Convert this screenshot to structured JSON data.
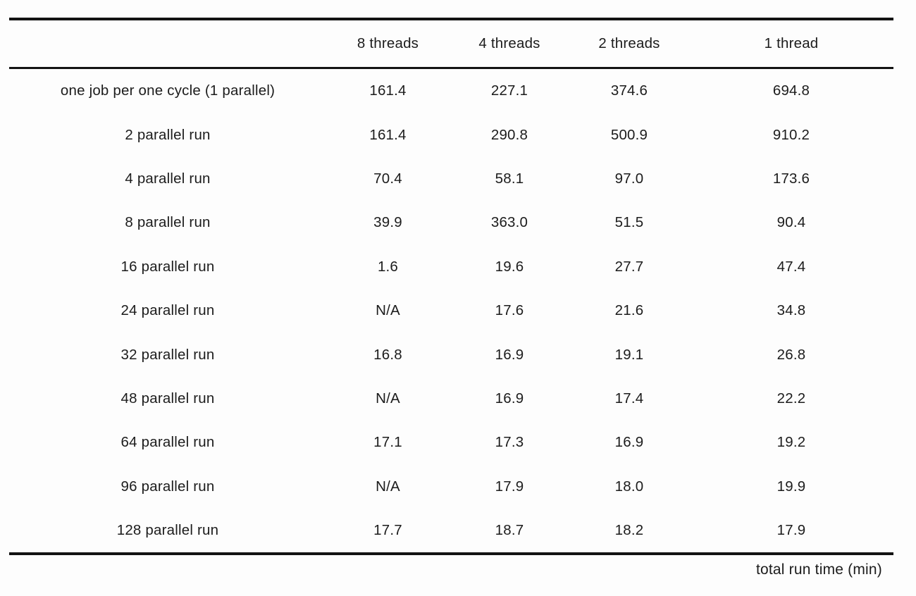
{
  "chart_data": {
    "type": "table",
    "columns": [
      "8 threads",
      "4 threads",
      "2 threads",
      "1 thread"
    ],
    "row_labels": [
      "one job per one cycle (1 parallel)",
      "2 parallel run",
      "4 parallel run",
      "8 parallel run",
      "16 parallel run",
      "24 parallel run",
      "32 parallel run",
      "48 parallel run",
      "64 parallel run",
      "96 parallel run",
      "128 parallel run"
    ],
    "values": [
      [
        161.4,
        227.1,
        374.6,
        694.8
      ],
      [
        161.4,
        290.8,
        500.9,
        910.2
      ],
      [
        70.4,
        58.1,
        97.0,
        173.6
      ],
      [
        39.9,
        363.0,
        51.5,
        90.4
      ],
      [
        1.6,
        19.6,
        27.7,
        47.4
      ],
      [
        "N/A",
        17.6,
        21.6,
        34.8
      ],
      [
        16.8,
        16.9,
        19.1,
        26.8
      ],
      [
        "N/A",
        16.9,
        17.4,
        22.2
      ],
      [
        17.1,
        17.3,
        16.9,
        19.2
      ],
      [
        "N/A",
        17.9,
        18.0,
        19.9
      ],
      [
        17.7,
        18.7,
        18.2,
        17.9
      ]
    ],
    "footnote": "total run time (min)",
    "units": "minutes"
  },
  "table": {
    "columns": [
      "8 threads",
      "4 threads",
      "2 threads",
      "1 thread"
    ],
    "rows": [
      {
        "label": "one job per one cycle (1 parallel)",
        "values": [
          "161.4",
          "227.1",
          "374.6",
          "694.8"
        ]
      },
      {
        "label": "2 parallel run",
        "values": [
          "161.4",
          "290.8",
          "500.9",
          "910.2"
        ]
      },
      {
        "label": "4 parallel run",
        "values": [
          "70.4",
          "58.1",
          "97.0",
          "173.6"
        ]
      },
      {
        "label": "8 parallel run",
        "values": [
          "39.9",
          "363.0",
          "51.5",
          "90.4"
        ]
      },
      {
        "label": "16 parallel run",
        "values": [
          "1.6",
          "19.6",
          "27.7",
          "47.4"
        ]
      },
      {
        "label": "24 parallel run",
        "values": [
          "N/A",
          "17.6",
          "21.6",
          "34.8"
        ]
      },
      {
        "label": "32 parallel run",
        "values": [
          "16.8",
          "16.9",
          "19.1",
          "26.8"
        ]
      },
      {
        "label": "48 parallel run",
        "values": [
          "N/A",
          "16.9",
          "17.4",
          "22.2"
        ]
      },
      {
        "label": "64 parallel run",
        "values": [
          "17.1",
          "17.3",
          "16.9",
          "19.2"
        ]
      },
      {
        "label": "96 parallel run",
        "values": [
          "N/A",
          "17.9",
          "18.0",
          "19.9"
        ]
      },
      {
        "label": "128 parallel run",
        "values": [
          "17.7",
          "18.7",
          "18.2",
          "17.9"
        ]
      }
    ],
    "caption": "total run time (min)"
  },
  "colors": {
    "background": "#fdfdfd",
    "text": "#1c1c1c",
    "rule": "#131313"
  }
}
